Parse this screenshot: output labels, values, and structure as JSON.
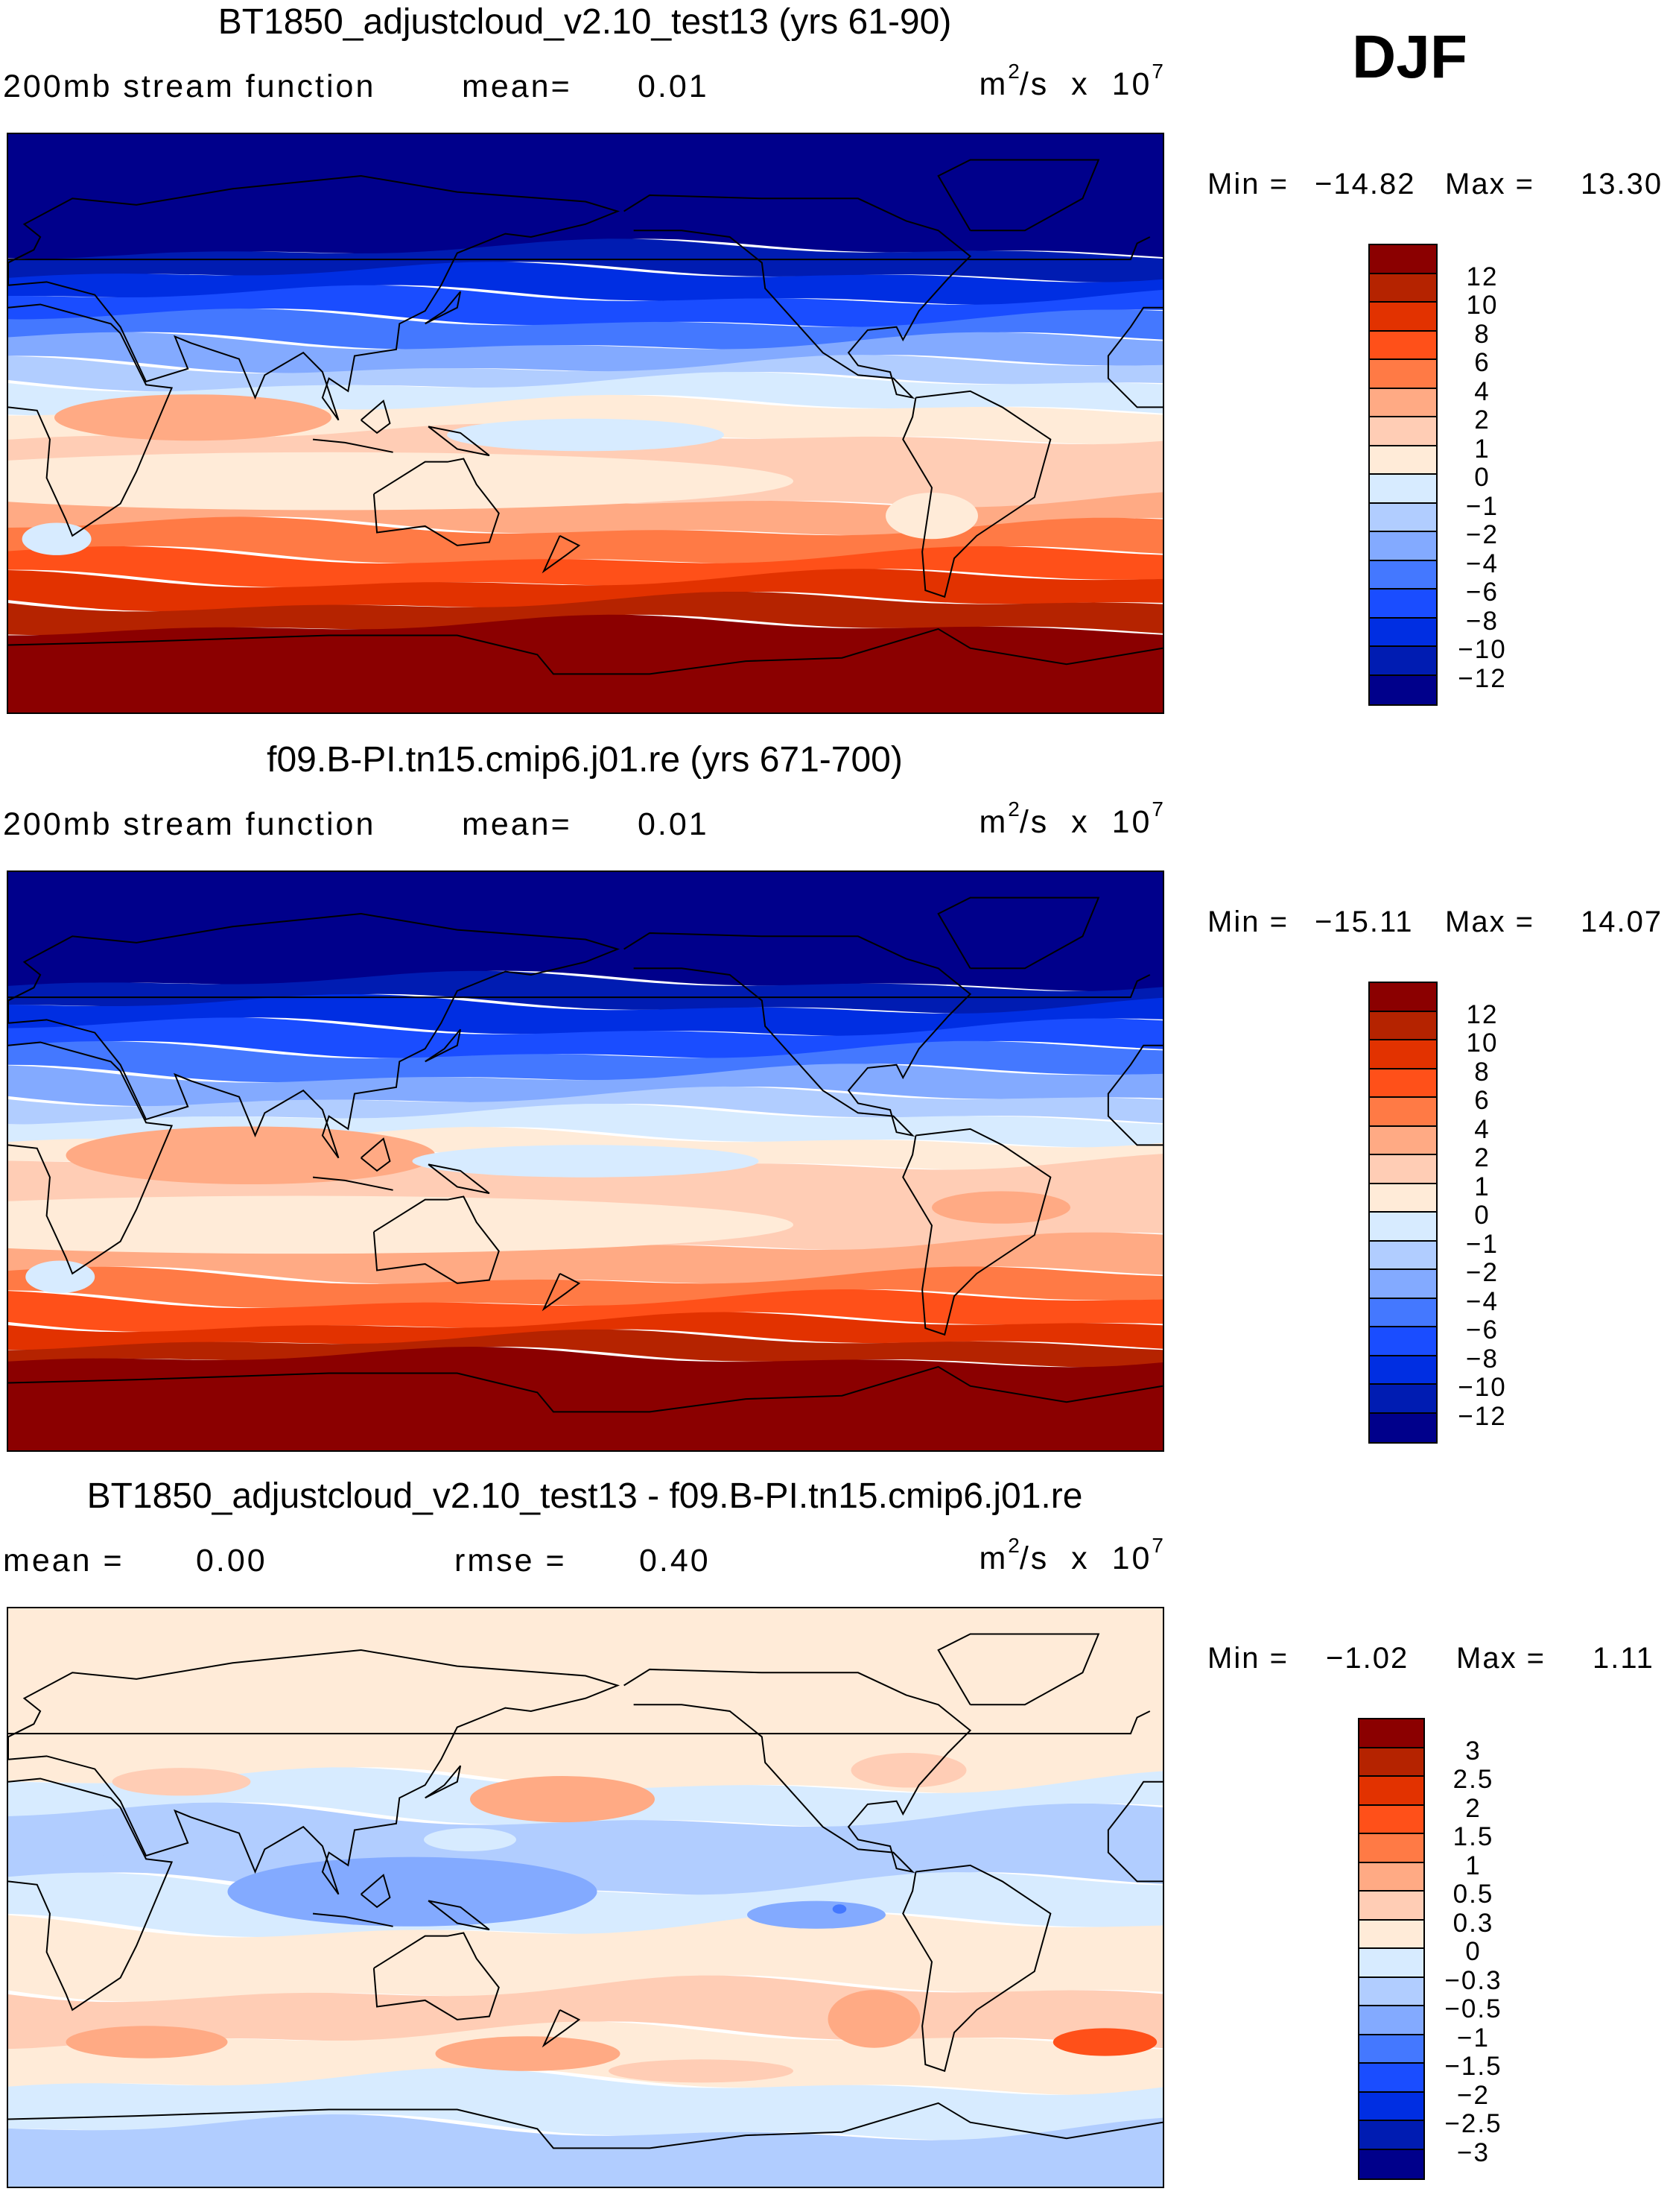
{
  "season": "DJF",
  "colors": [
    "#8b0000",
    "#b52300",
    "#e23200",
    "#ff5019",
    "#ff7a45",
    "#ffaa84",
    "#ffcdb5",
    "#ffebd8",
    "#d7ebff",
    "#b1cdff",
    "#83aaff",
    "#4478ff",
    "#1a4dff",
    "#002ee2",
    "#001cb2",
    "#00008b"
  ],
  "panels": [
    {
      "title": "BT1850_adjustcloud_v2.10_test13 (yrs 61-90)",
      "sub_label": "200mb stream function",
      "mean_label": "mean=",
      "mean_value": "0.01",
      "units": {
        "base": "m",
        "exp1": "2",
        "mid": "/s  x  10",
        "exp2": "7"
      },
      "min_label": "Min =",
      "min_value": "−14.82",
      "max_label": "Max =",
      "max_value": "13.30",
      "levels": [
        "12",
        "10",
        "8",
        "6",
        "4",
        "2",
        "1",
        "0",
        "−1",
        "−2",
        "−4",
        "−6",
        "−8",
        "−10",
        "−12"
      ]
    },
    {
      "title": "f09.B-PI.tn15.cmip6.j01.re (yrs 671-700)",
      "sub_label": "200mb stream function",
      "mean_label": "mean=",
      "mean_value": "0.01",
      "units": {
        "base": "m",
        "exp1": "2",
        "mid": "/s  x  10",
        "exp2": "7"
      },
      "min_label": "Min =",
      "min_value": "−15.11",
      "max_label": "Max =",
      "max_value": "14.07",
      "levels": [
        "12",
        "10",
        "8",
        "6",
        "4",
        "2",
        "1",
        "0",
        "−1",
        "−2",
        "−4",
        "−6",
        "−8",
        "−10",
        "−12"
      ]
    },
    {
      "title": "BT1850_adjustcloud_v2.10_test13 - f09.B-PI.tn15.cmip6.j01.re",
      "mean_label": "mean =",
      "mean_value": "0.00",
      "rmse_label": "rmse =",
      "rmse_value": "0.40",
      "units": {
        "base": "m",
        "exp1": "2",
        "mid": "/s  x  10",
        "exp2": "7"
      },
      "min_label": "Min =",
      "min_value": "−1.02",
      "max_label": "Max =",
      "max_value": "1.11",
      "levels": [
        "3",
        "2.5",
        "2",
        "1.5",
        "1",
        "0.5",
        "0.3",
        "0",
        "−0.3",
        "−0.5",
        "−1",
        "−1.5",
        "−2",
        "−2.5",
        "−3"
      ]
    }
  ],
  "chart_data": [
    {
      "type": "heatmap",
      "title": "BT1850_adjustcloud_v2.10_test13 (yrs 61-90)",
      "variable": "200mb stream function",
      "units": "m2/s x 10^7",
      "mean": 0.01,
      "min": -14.82,
      "max": 13.3,
      "levels": [
        12,
        10,
        8,
        6,
        4,
        2,
        1,
        0,
        -1,
        -2,
        -4,
        -6,
        -8,
        -10,
        -12
      ]
    },
    {
      "type": "heatmap",
      "title": "f09.B-PI.tn15.cmip6.j01.re (yrs 671-700)",
      "variable": "200mb stream function",
      "units": "m2/s x 10^7",
      "mean": 0.01,
      "min": -15.11,
      "max": 14.07,
      "levels": [
        12,
        10,
        8,
        6,
        4,
        2,
        1,
        0,
        -1,
        -2,
        -4,
        -6,
        -8,
        -10,
        -12
      ]
    },
    {
      "type": "heatmap",
      "title": "BT1850_adjustcloud_v2.10_test13 - f09.B-PI.tn15.cmip6.j01.re",
      "units": "m2/s x 10^7",
      "mean": 0.0,
      "rmse": 0.4,
      "min": -1.02,
      "max": 1.11,
      "levels": [
        3,
        2.5,
        2,
        1.5,
        1,
        0.5,
        0.3,
        0,
        -0.3,
        -0.5,
        -1,
        -1.5,
        -2,
        -2.5,
        -3
      ]
    }
  ]
}
